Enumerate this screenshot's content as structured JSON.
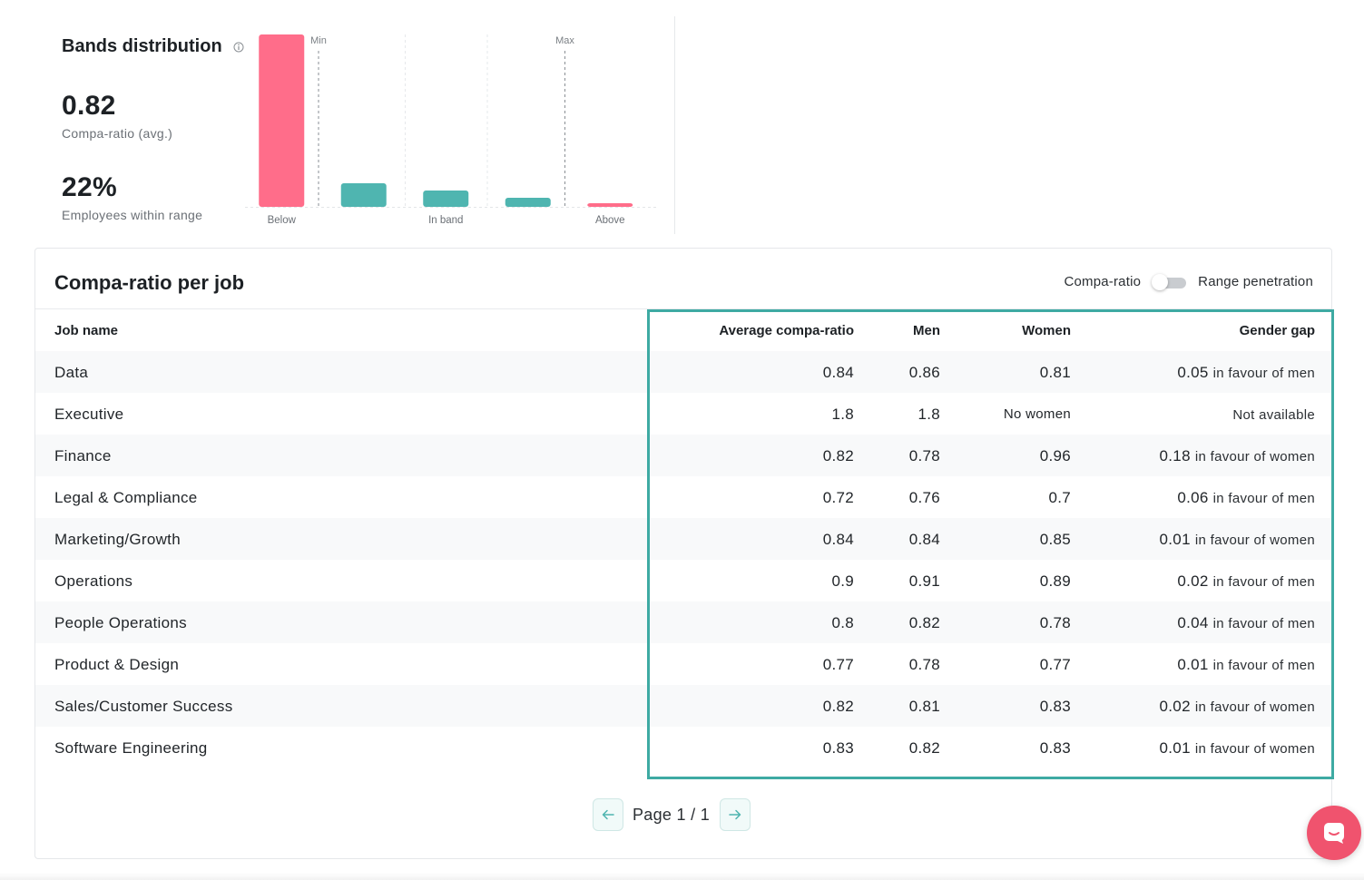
{
  "bands": {
    "title": "Bands distribution",
    "compa_ratio_value": "0.82",
    "compa_ratio_label": "Compa-ratio (avg.)",
    "within_range_value": "22%",
    "within_range_label": "Employees within range",
    "min_label": "Min",
    "max_label": "Max",
    "colors": {
      "outside": "#ff6d8a",
      "inside": "#4fb5b0"
    }
  },
  "chart_data": {
    "type": "bar",
    "categories": [
      "Below",
      "",
      "In band",
      "",
      "Above"
    ],
    "values": [
      95,
      13,
      9,
      5,
      2
    ],
    "x_tick_labels": [
      "Below",
      "In band",
      "Above"
    ],
    "reference_lines": [
      "Min",
      "Max"
    ],
    "grid": false
  },
  "card": {
    "title": "Compa-ratio per job",
    "toggle_left": "Compa-ratio",
    "toggle_right": "Range penetration"
  },
  "table": {
    "headers": {
      "job": "Job name",
      "avg": "Average compa-ratio",
      "men": "Men",
      "women": "Women",
      "gap": "Gender gap"
    },
    "rows": [
      {
        "job": "Data",
        "avg": "0.84",
        "men": "0.86",
        "women": "0.81",
        "gap_value": "0.05",
        "gap_text": "in favour of men"
      },
      {
        "job": "Executive",
        "avg": "1.8",
        "men": "1.8",
        "women": "No women",
        "gap_value": "",
        "gap_text": "Not available"
      },
      {
        "job": "Finance",
        "avg": "0.82",
        "men": "0.78",
        "women": "0.96",
        "gap_value": "0.18",
        "gap_text": "in favour of women"
      },
      {
        "job": "Legal & Compliance",
        "avg": "0.72",
        "men": "0.76",
        "women": "0.7",
        "gap_value": "0.06",
        "gap_text": "in favour of men"
      },
      {
        "job": "Marketing/Growth",
        "avg": "0.84",
        "men": "0.84",
        "women": "0.85",
        "gap_value": "0.01",
        "gap_text": "in favour of women"
      },
      {
        "job": "Operations",
        "avg": "0.9",
        "men": "0.91",
        "women": "0.89",
        "gap_value": "0.02",
        "gap_text": "in favour of men"
      },
      {
        "job": "People Operations",
        "avg": "0.8",
        "men": "0.82",
        "women": "0.78",
        "gap_value": "0.04",
        "gap_text": "in favour of men"
      },
      {
        "job": "Product & Design",
        "avg": "0.77",
        "men": "0.78",
        "women": "0.77",
        "gap_value": "0.01",
        "gap_text": "in favour of men"
      },
      {
        "job": "Sales/Customer Success",
        "avg": "0.82",
        "men": "0.81",
        "women": "0.83",
        "gap_value": "0.02",
        "gap_text": "in favour of women"
      },
      {
        "job": "Software Engineering",
        "avg": "0.83",
        "men": "0.82",
        "women": "0.83",
        "gap_value": "0.01",
        "gap_text": "in favour of women"
      }
    ]
  },
  "pager": {
    "label": "Page 1 / 1",
    "prev_icon": "arrow-left-icon",
    "next_icon": "arrow-right-icon"
  },
  "chat": {
    "icon": "chat-icon",
    "color": "#f0536e"
  },
  "highlight_color": "#3eaaa3"
}
